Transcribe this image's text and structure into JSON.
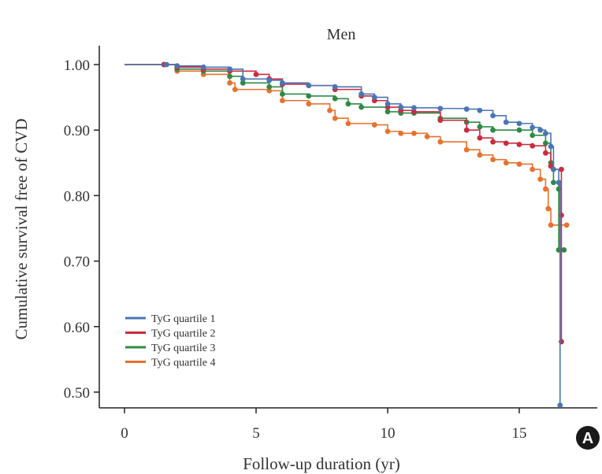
{
  "chart_data": {
    "type": "line",
    "title": "Men",
    "xlabel": "Follow-up duration (yr)",
    "ylabel": "Cumulative survival free of CVD",
    "xlim": [
      -1,
      18
    ],
    "ylim": [
      0.47,
      1.03
    ],
    "xticks": [
      0,
      5,
      10,
      15
    ],
    "yticks": [
      0.5,
      0.6,
      0.7,
      0.8,
      0.9,
      1.0
    ],
    "ytick_labels": [
      "0.50",
      "0.60",
      "0.70",
      "0.80",
      "0.90",
      "1.00"
    ],
    "grid": false,
    "legend_position": "bottom-left",
    "panel_label": "A",
    "series": [
      {
        "name": "TyG quartile 1",
        "color": "#4a76b3",
        "points": [
          [
            0,
            1.0
          ],
          [
            1.6,
            1.0
          ],
          [
            2.0,
            0.998
          ],
          [
            3.0,
            0.996
          ],
          [
            4.0,
            0.993
          ],
          [
            4.5,
            0.978
          ],
          [
            5.5,
            0.976
          ],
          [
            6.0,
            0.972
          ],
          [
            7.0,
            0.968
          ],
          [
            8.0,
            0.966
          ],
          [
            9.0,
            0.955
          ],
          [
            9.5,
            0.95
          ],
          [
            10.0,
            0.94
          ],
          [
            10.5,
            0.935
          ],
          [
            11.0,
            0.934
          ],
          [
            12.0,
            0.933
          ],
          [
            13.0,
            0.932
          ],
          [
            13.5,
            0.93
          ],
          [
            14.0,
            0.922
          ],
          [
            14.5,
            0.912
          ],
          [
            15.0,
            0.91
          ],
          [
            15.5,
            0.904
          ],
          [
            15.8,
            0.9
          ],
          [
            16.0,
            0.895
          ],
          [
            16.2,
            0.875
          ],
          [
            16.3,
            0.84
          ],
          [
            16.5,
            0.82
          ],
          [
            16.55,
            0.48
          ]
        ]
      },
      {
        "name": "TyG quartile 2",
        "color": "#cc2b3f",
        "points": [
          [
            0,
            1.0
          ],
          [
            1.5,
            1.0
          ],
          [
            2.0,
            0.996
          ],
          [
            3.0,
            0.993
          ],
          [
            4.0,
            0.99
          ],
          [
            5.0,
            0.985
          ],
          [
            5.5,
            0.978
          ],
          [
            6.0,
            0.97
          ],
          [
            7.0,
            0.968
          ],
          [
            8.0,
            0.962
          ],
          [
            9.0,
            0.952
          ],
          [
            9.5,
            0.945
          ],
          [
            10.0,
            0.935
          ],
          [
            10.5,
            0.93
          ],
          [
            11.0,
            0.928
          ],
          [
            12.0,
            0.915
          ],
          [
            13.0,
            0.9
          ],
          [
            13.5,
            0.888
          ],
          [
            14.0,
            0.882
          ],
          [
            14.5,
            0.88
          ],
          [
            15.0,
            0.878
          ],
          [
            15.5,
            0.876
          ],
          [
            16.0,
            0.865
          ],
          [
            16.2,
            0.845
          ],
          [
            16.3,
            0.84
          ],
          [
            16.6,
            0.84
          ],
          [
            16.6,
            0.77
          ],
          [
            16.6,
            0.577
          ]
        ]
      },
      {
        "name": "TyG quartile 3",
        "color": "#2e8a45",
        "points": [
          [
            0,
            1.0
          ],
          [
            1.5,
            1.0
          ],
          [
            2.0,
            0.993
          ],
          [
            3.0,
            0.99
          ],
          [
            4.0,
            0.982
          ],
          [
            4.5,
            0.972
          ],
          [
            5.5,
            0.966
          ],
          [
            6.0,
            0.955
          ],
          [
            7.0,
            0.952
          ],
          [
            8.0,
            0.948
          ],
          [
            8.5,
            0.94
          ],
          [
            9.0,
            0.935
          ],
          [
            10.0,
            0.928
          ],
          [
            10.5,
            0.926
          ],
          [
            11.0,
            0.926
          ],
          [
            12.0,
            0.918
          ],
          [
            13.0,
            0.912
          ],
          [
            13.5,
            0.905
          ],
          [
            14.0,
            0.9
          ],
          [
            15.0,
            0.9
          ],
          [
            15.5,
            0.892
          ],
          [
            16.0,
            0.88
          ],
          [
            16.2,
            0.85
          ],
          [
            16.3,
            0.82
          ],
          [
            16.5,
            0.81
          ],
          [
            16.5,
            0.717
          ],
          [
            16.7,
            0.717
          ]
        ]
      },
      {
        "name": "TyG quartile 4",
        "color": "#e8722e",
        "points": [
          [
            0,
            1.0
          ],
          [
            1.5,
            1.0
          ],
          [
            2.0,
            0.99
          ],
          [
            3.0,
            0.985
          ],
          [
            4.0,
            0.972
          ],
          [
            4.2,
            0.962
          ],
          [
            5.5,
            0.96
          ],
          [
            6.0,
            0.945
          ],
          [
            7.0,
            0.94
          ],
          [
            7.8,
            0.93
          ],
          [
            8.0,
            0.918
          ],
          [
            8.5,
            0.91
          ],
          [
            9.5,
            0.908
          ],
          [
            10.0,
            0.898
          ],
          [
            10.5,
            0.895
          ],
          [
            11.0,
            0.895
          ],
          [
            11.5,
            0.89
          ],
          [
            12.0,
            0.882
          ],
          [
            13.0,
            0.87
          ],
          [
            13.5,
            0.862
          ],
          [
            14.0,
            0.855
          ],
          [
            14.5,
            0.85
          ],
          [
            15.0,
            0.848
          ],
          [
            15.5,
            0.84
          ],
          [
            15.8,
            0.825
          ],
          [
            16.0,
            0.81
          ],
          [
            16.1,
            0.78
          ],
          [
            16.2,
            0.755
          ],
          [
            16.8,
            0.755
          ]
        ]
      }
    ]
  }
}
